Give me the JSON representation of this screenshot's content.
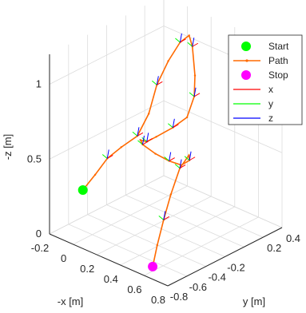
{
  "chart_data": {
    "type": "line",
    "plot_kind": "3d-trajectory",
    "title": "",
    "axes": {
      "x": {
        "label": "-x [m]",
        "ticks": [
          "-0.2",
          "0",
          "0.2",
          "0.4",
          "0.6",
          "0.8"
        ],
        "range": [
          -0.2,
          0.8
        ]
      },
      "y": {
        "label": "y [m]",
        "ticks": [
          "-0.8",
          "-0.6",
          "-0.4",
          "-0.2",
          "0.2",
          "0.4"
        ],
        "range": [
          -0.8,
          0.4
        ]
      },
      "z": {
        "label": "-z [m]",
        "ticks": [
          "0",
          "0.5",
          "1"
        ],
        "range": [
          0,
          1.2
        ]
      }
    },
    "grid": true,
    "legend": {
      "placement": "top-right",
      "entries": [
        {
          "label": "Start",
          "marker": "filled-circle",
          "color": "#00ff00"
        },
        {
          "label": "Path",
          "marker": "line-dot",
          "color": "#ff6a00"
        },
        {
          "label": "Stop",
          "marker": "filled-circle",
          "color": "#ff00ff"
        },
        {
          "label": "x",
          "marker": "line",
          "color": "#ff0000"
        },
        {
          "label": "y",
          "marker": "line",
          "color": "#00ff00"
        },
        {
          "label": "z",
          "marker": "line",
          "color": "#0000ff"
        }
      ]
    },
    "series": [
      {
        "name": "Path",
        "color": "#ff6a00",
        "points": [
          {
            "x": -0.2,
            "y": -0.45,
            "z": 0.18
          },
          {
            "x": -0.12,
            "y": -0.42,
            "z": 0.3
          },
          {
            "x": -0.05,
            "y": -0.38,
            "z": 0.42
          },
          {
            "x": 0.02,
            "y": -0.32,
            "z": 0.5
          },
          {
            "x": 0.1,
            "y": -0.25,
            "z": 0.58
          },
          {
            "x": 0.14,
            "y": -0.18,
            "z": 0.72
          },
          {
            "x": 0.16,
            "y": -0.12,
            "z": 0.9
          },
          {
            "x": 0.2,
            "y": -0.05,
            "z": 1.05
          },
          {
            "x": 0.26,
            "y": 0.0,
            "z": 1.18
          },
          {
            "x": 0.32,
            "y": 0.02,
            "z": 1.24
          },
          {
            "x": 0.38,
            "y": -0.02,
            "z": 1.2
          },
          {
            "x": 0.45,
            "y": -0.08,
            "z": 1.05
          },
          {
            "x": 0.5,
            "y": -0.15,
            "z": 0.95
          },
          {
            "x": 0.48,
            "y": -0.2,
            "z": 0.82
          },
          {
            "x": 0.4,
            "y": -0.25,
            "z": 0.74
          },
          {
            "x": 0.3,
            "y": -0.3,
            "z": 0.66
          },
          {
            "x": 0.22,
            "y": -0.3,
            "z": 0.6
          },
          {
            "x": 0.15,
            "y": -0.28,
            "z": 0.58
          },
          {
            "x": 0.12,
            "y": -0.22,
            "z": 0.52
          },
          {
            "x": 0.18,
            "y": -0.16,
            "z": 0.46
          },
          {
            "x": 0.28,
            "y": -0.14,
            "z": 0.44
          },
          {
            "x": 0.4,
            "y": -0.16,
            "z": 0.46
          },
          {
            "x": 0.5,
            "y": -0.2,
            "z": 0.54
          },
          {
            "x": 0.56,
            "y": -0.28,
            "z": 0.62
          },
          {
            "x": 0.58,
            "y": -0.4,
            "z": 0.58
          },
          {
            "x": 0.6,
            "y": -0.52,
            "z": 0.45
          },
          {
            "x": 0.62,
            "y": -0.62,
            "z": 0.32
          },
          {
            "x": 0.63,
            "y": -0.7,
            "z": 0.18
          },
          {
            "x": 0.64,
            "y": -0.76,
            "z": 0.06
          }
        ]
      }
    ],
    "start": {
      "x": -0.2,
      "y": -0.45,
      "z": 0.18
    },
    "stop": {
      "x": 0.64,
      "y": -0.76,
      "z": 0.06
    }
  }
}
